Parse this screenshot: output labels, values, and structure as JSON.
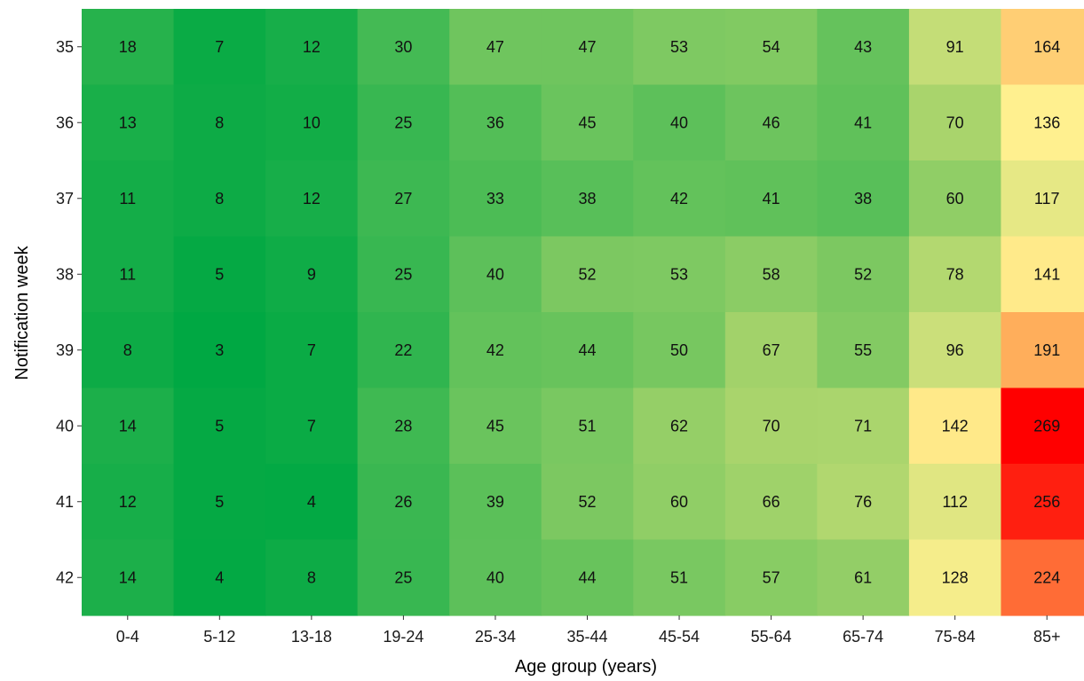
{
  "chart_data": {
    "type": "heatmap",
    "xlabel": "Age group (years)",
    "ylabel": "Notification week",
    "x_categories": [
      "0-4",
      "5-12",
      "13-18",
      "19-24",
      "25-34",
      "35-44",
      "45-54",
      "55-64",
      "65-74",
      "75-84",
      "85+"
    ],
    "y_categories": [
      "35",
      "36",
      "37",
      "38",
      "39",
      "40",
      "41",
      "42"
    ],
    "values": [
      [
        18,
        7,
        12,
        30,
        47,
        47,
        53,
        54,
        43,
        91,
        164
      ],
      [
        13,
        8,
        10,
        25,
        36,
        45,
        40,
        46,
        41,
        70,
        136
      ],
      [
        11,
        8,
        12,
        27,
        33,
        38,
        42,
        41,
        38,
        60,
        117
      ],
      [
        11,
        5,
        9,
        25,
        40,
        52,
        53,
        58,
        52,
        78,
        141
      ],
      [
        8,
        3,
        7,
        22,
        42,
        44,
        50,
        67,
        55,
        96,
        191
      ],
      [
        14,
        5,
        7,
        28,
        45,
        51,
        62,
        70,
        71,
        142,
        269
      ],
      [
        12,
        5,
        4,
        26,
        39,
        52,
        60,
        66,
        76,
        112,
        256
      ],
      [
        14,
        4,
        8,
        25,
        40,
        44,
        51,
        57,
        61,
        128,
        224
      ]
    ],
    "color_scale": {
      "low": "#00a843",
      "mid_low": "#a8d46c",
      "mid": "#fff08f",
      "mid_high": "#ffa050",
      "high": "#ff0000"
    },
    "legend": "none",
    "grid": false
  }
}
